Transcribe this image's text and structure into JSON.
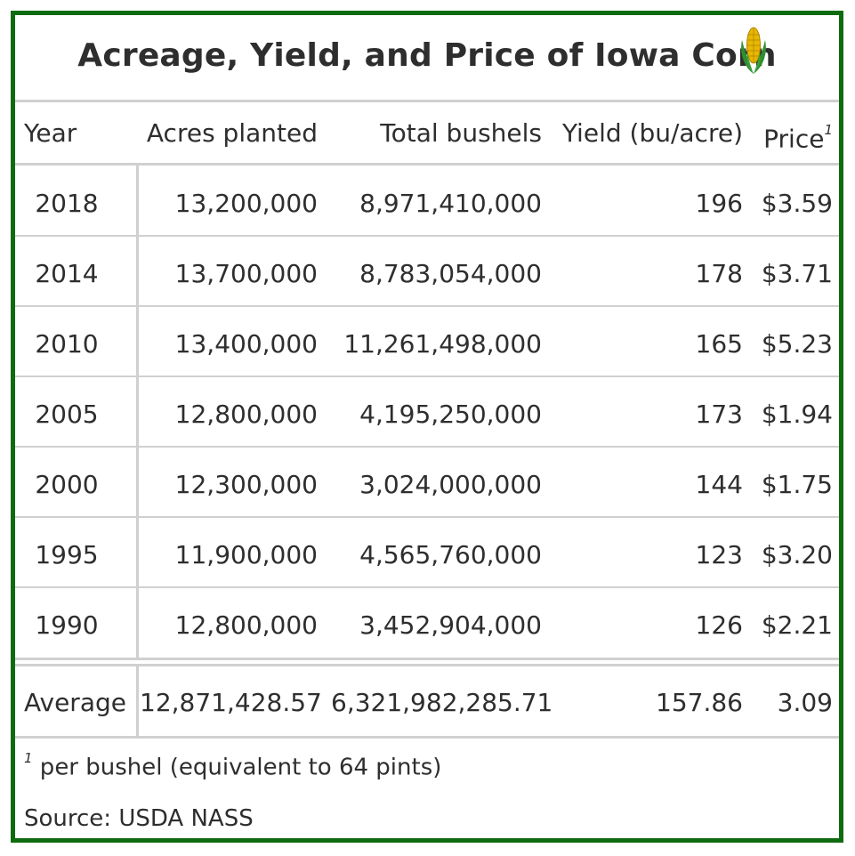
{
  "title": "Acreage, Yield, and Price of Iowa Corn",
  "icons": {
    "corn": "corn-icon"
  },
  "colors": {
    "border": "#0f6b0f",
    "grid": "#d0d0d0",
    "text": "#2e2e2e"
  },
  "headers": {
    "year": "Year",
    "acres": "Acres planted",
    "bushels": "Total bushels",
    "yield": "Yield (bu/acre)",
    "price": "Price",
    "price_note_mark": "1"
  },
  "rows": [
    {
      "year": "2018",
      "acres": "13,200,000",
      "bushels": "8,971,410,000",
      "yield": "196",
      "price": "$3.59"
    },
    {
      "year": "2014",
      "acres": "13,700,000",
      "bushels": "8,783,054,000",
      "yield": "178",
      "price": "$3.71"
    },
    {
      "year": "2010",
      "acres": "13,400,000",
      "bushels": "11,261,498,000",
      "yield": "165",
      "price": "$5.23"
    },
    {
      "year": "2005",
      "acres": "12,800,000",
      "bushels": "4,195,250,000",
      "yield": "173",
      "price": "$1.94"
    },
    {
      "year": "2000",
      "acres": "12,300,000",
      "bushels": "3,024,000,000",
      "yield": "144",
      "price": "$1.75"
    },
    {
      "year": "1995",
      "acres": "11,900,000",
      "bushels": "4,565,760,000",
      "yield": "123",
      "price": "$3.20"
    },
    {
      "year": "1990",
      "acres": "12,800,000",
      "bushels": "3,452,904,000",
      "yield": "126",
      "price": "$2.21"
    }
  ],
  "average": {
    "label": "Average",
    "acres": "12,871,428.57",
    "bushels": "6,321,982,285.71",
    "yield": "157.86",
    "price": "3.09"
  },
  "footnote": {
    "mark": "1",
    "text": " per bushel (equivalent to 64 pints)"
  },
  "source": "Source: USDA NASS"
}
